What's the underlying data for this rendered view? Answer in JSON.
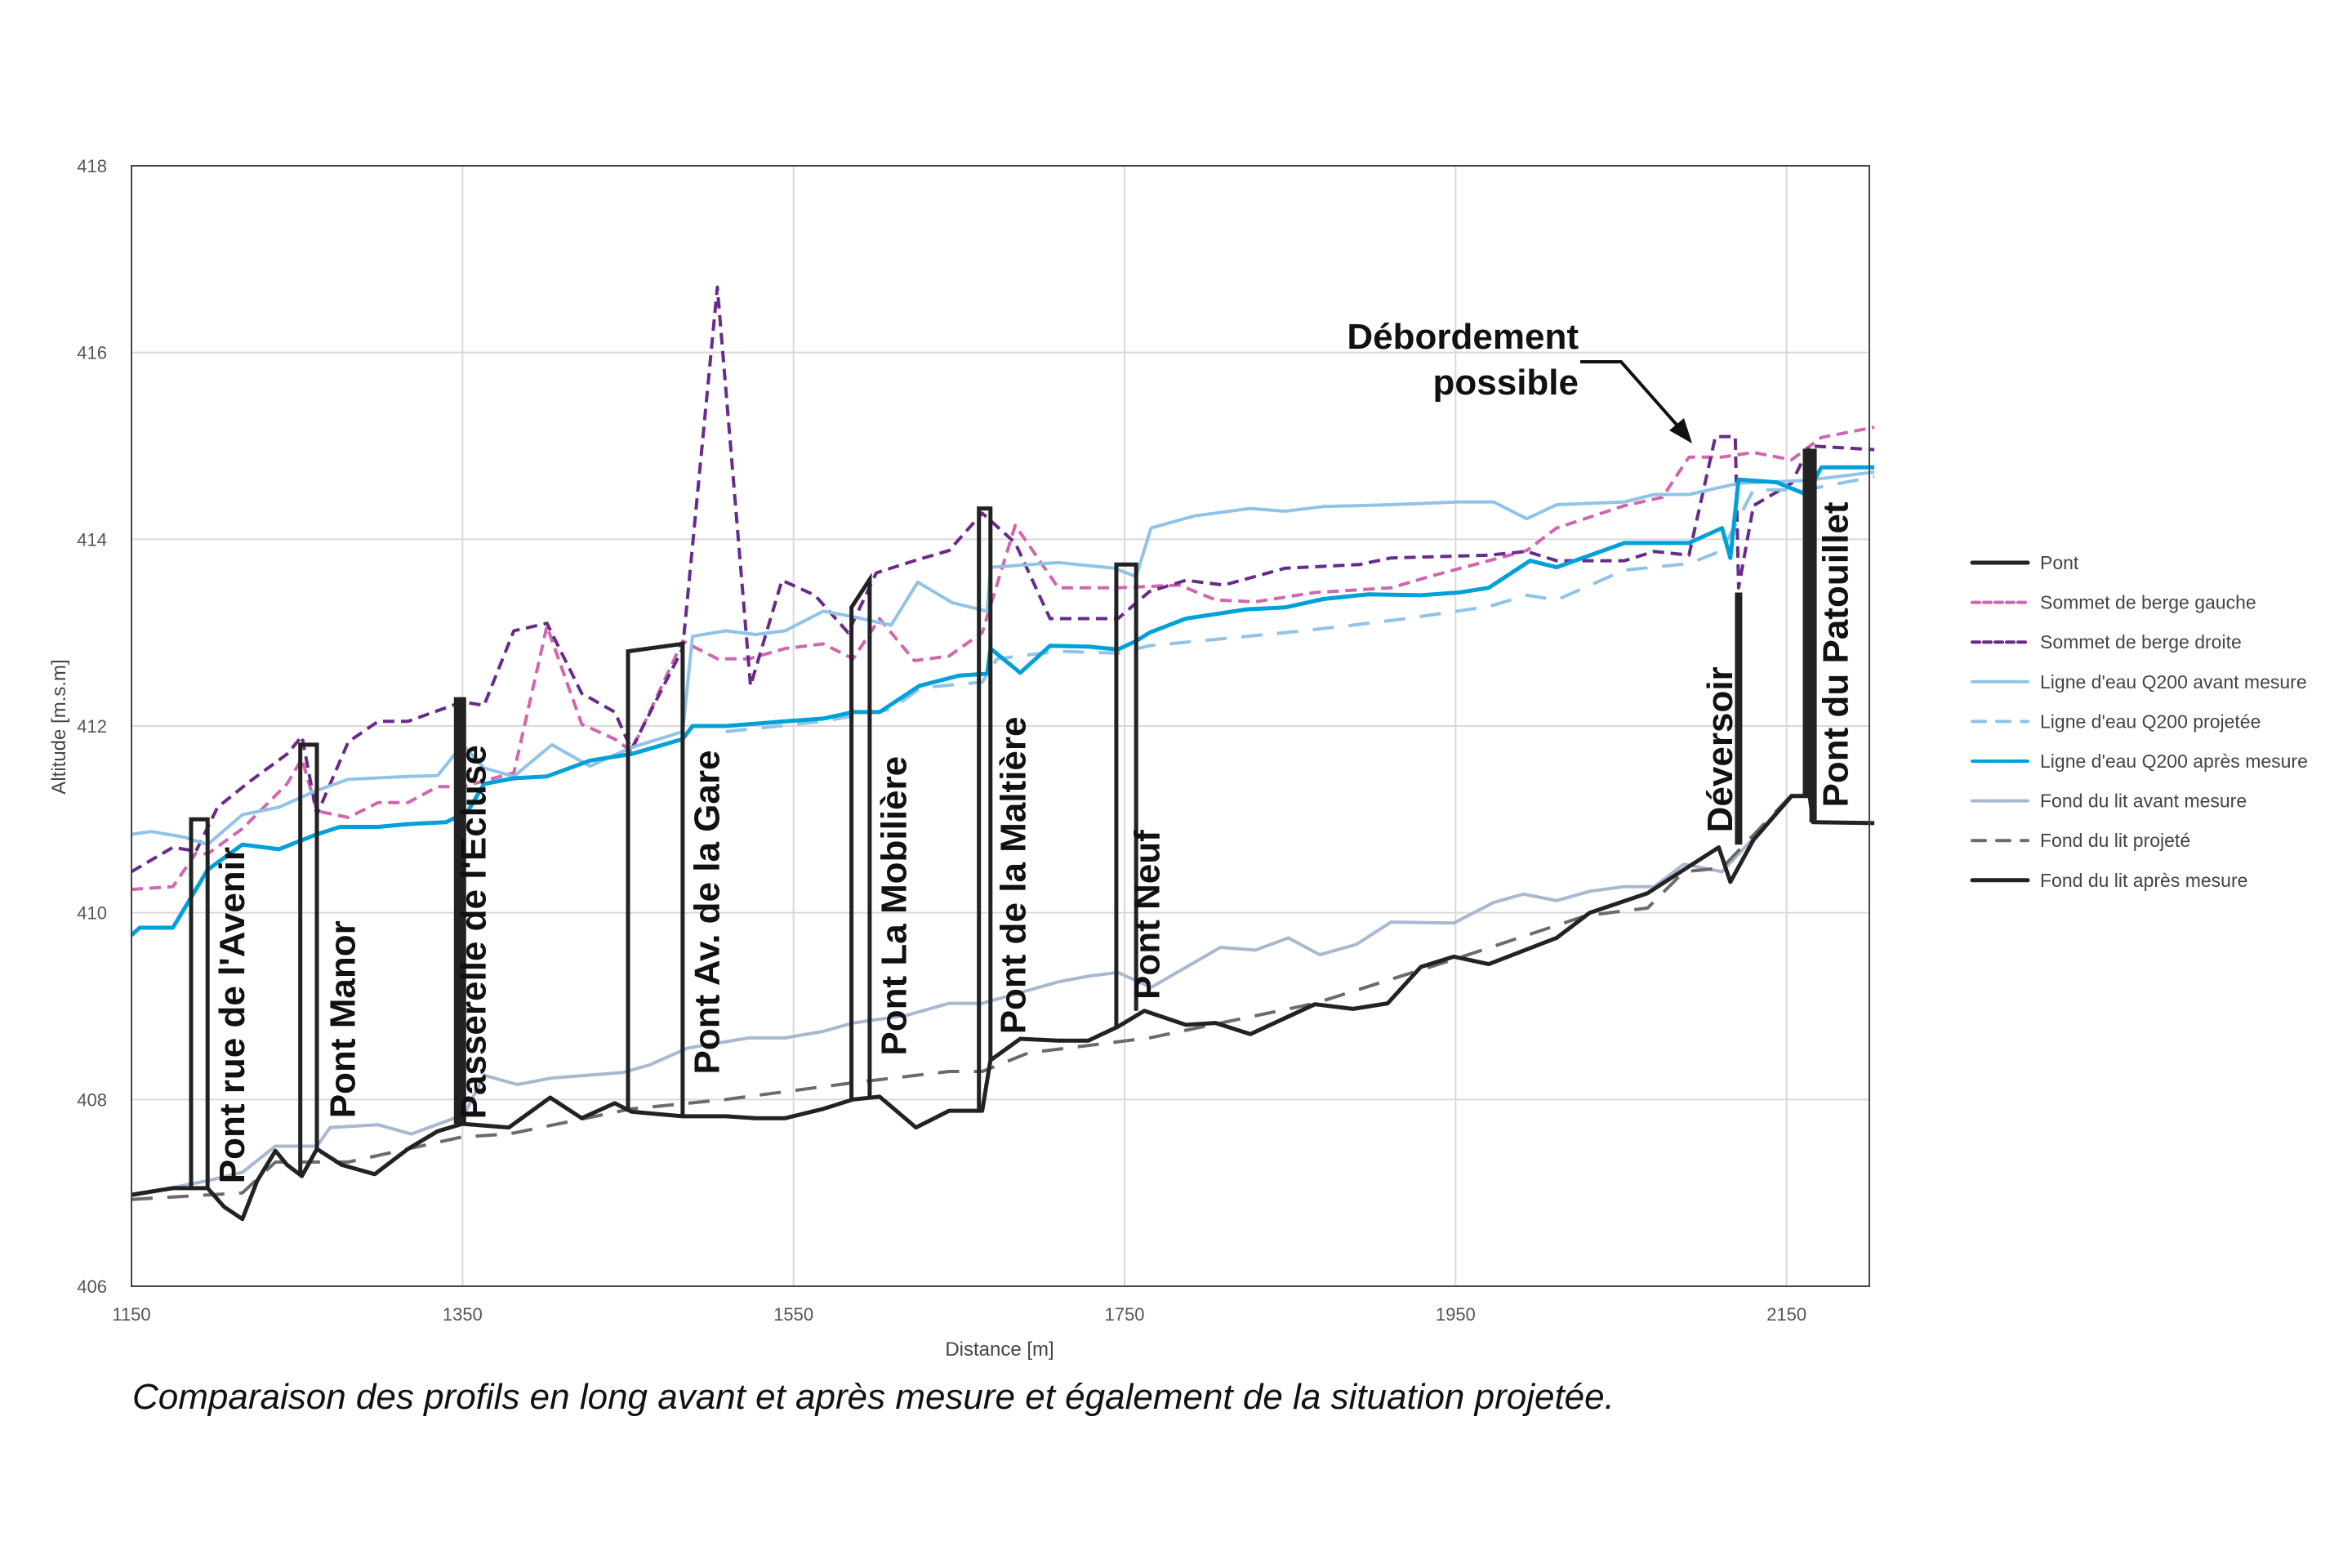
{
  "chart_data": {
    "type": "line",
    "xlabel": "Distance [m]",
    "ylabel": "Altitude [m.s.m]",
    "xlim": [
      1150,
      2200
    ],
    "ylim": [
      406,
      418
    ],
    "xticks": [
      1150,
      1350,
      1550,
      1750,
      1950,
      2150
    ],
    "yticks": [
      406,
      408,
      410,
      412,
      414,
      416,
      418
    ],
    "grid": true,
    "legend_position": "right",
    "caption": "Comparaison des profils en long avant et après mesure et également de la situation projetée.",
    "annotation": {
      "line1": "Débordement",
      "line2": "possible"
    },
    "legend": [
      {
        "label": "Pont",
        "color": "#222222",
        "dash": "solid"
      },
      {
        "label": "Sommet de berge gauche",
        "color": "#d166b0",
        "dash": "dashed"
      },
      {
        "label": "Sommet de berge droite",
        "color": "#6a2a8a",
        "dash": "dashed"
      },
      {
        "label": "Ligne d'eau Q200 avant mesure",
        "color": "#8fc3e8",
        "dash": "solid"
      },
      {
        "label": "Ligne d'eau Q200 projetée",
        "color": "#8fc3e8",
        "dash": "long-dashed"
      },
      {
        "label": "Ligne d'eau Q200 après mesure",
        "color": "#00a0d8",
        "dash": "solid"
      },
      {
        "label": "Fond du lit avant mesure",
        "color": "#a8b8d0",
        "dash": "solid"
      },
      {
        "label": "Fond du lit projeté",
        "color": "#6b6b6b",
        "dash": "long-dashed"
      },
      {
        "label": "Fond du lit après mesure",
        "color": "#222222",
        "dash": "solid"
      }
    ],
    "bridges": [
      {
        "name": "Pont rue de l'Avenir",
        "x_left": 1186,
        "x_right": 1196,
        "top": 411.0,
        "bottom_left": 407.05,
        "bottom_right": 407.05
      },
      {
        "name": "Pont Manor",
        "x_left": 1252,
        "x_right": 1262,
        "top": 411.8,
        "bottom_left": 407.18,
        "bottom_right": 407.47
      },
      {
        "name": "Passerelle de l'Ecluse",
        "x_left": 1347,
        "x_right": 1350,
        "top": 412.27,
        "bottom_left": 407.74,
        "bottom_right": 407.74
      },
      {
        "name": "Pont Av. de la Gare",
        "x_left": 1450,
        "x_right": 1483,
        "top_left": 412.8,
        "top": 412.88,
        "bottom_left": 407.87,
        "bottom_right": 407.82
      },
      {
        "name": "Pont La Mobilière",
        "x_left": 1585,
        "x_right": 1596,
        "top_left": 413.27,
        "top": 413.57,
        "bottom_left": 408.0,
        "bottom_right": 408.03
      },
      {
        "name": "Pont de la Maltière",
        "x_left": 1662,
        "x_right": 1669,
        "top": 414.33,
        "bottom_left": 407.88,
        "bottom_right": 408.42
      },
      {
        "name": "Pont Neuf",
        "x_left": 1745,
        "x_right": 1757,
        "top": 413.73,
        "bottom_left": 408.78,
        "bottom_right": 408.95
      },
      {
        "name": "Déversoir",
        "x_left": 2121,
        "x_right": 2121,
        "top": 413.43,
        "bottom_left": 410.73,
        "bottom_right": 410.73
      },
      {
        "name": "Pont du Patouillet",
        "x_left": 2162,
        "x_right": 2166,
        "top": 414.93,
        "bottom_left": 411.25,
        "bottom_right": 410.97
      }
    ],
    "series": [
      {
        "name": "Sommet de berge gauche",
        "x": [
          1150,
          1175,
          1189,
          1196,
          1217,
          1244,
          1253,
          1262,
          1281,
          1299,
          1317,
          1335,
          1350,
          1381,
          1401,
          1422,
          1442,
          1452,
          1483,
          1504,
          1523,
          1545,
          1568,
          1586,
          1602,
          1623,
          1644,
          1664,
          1684,
          1710,
          1746,
          1783,
          1805,
          1829,
          1865,
          1911,
          1934,
          1970,
          1993,
          2011,
          2052,
          2075,
          2091,
          2111,
          2130,
          2153,
          2171,
          2203
        ],
        "y": [
          410.25,
          410.28,
          410.64,
          410.63,
          410.9,
          411.38,
          411.65,
          411.09,
          411.02,
          411.18,
          411.18,
          411.35,
          411.35,
          411.5,
          413.07,
          412.02,
          411.86,
          411.73,
          412.91,
          412.72,
          412.72,
          412.83,
          412.88,
          412.72,
          413.15,
          412.7,
          412.75,
          413.0,
          414.15,
          413.48,
          413.48,
          413.51,
          413.35,
          413.33,
          413.43,
          413.48,
          413.6,
          413.77,
          413.88,
          414.12,
          414.36,
          414.45,
          414.88,
          414.88,
          414.93,
          414.85,
          415.09,
          415.2
        ]
      },
      {
        "name": "Sommet de berge droite",
        "x": [
          1150,
          1175,
          1189,
          1202,
          1221,
          1244,
          1253,
          1262,
          1281,
          1299,
          1317,
          1350,
          1363,
          1381,
          1401,
          1422,
          1442,
          1452,
          1483,
          1504,
          1524,
          1543,
          1563,
          1583,
          1600,
          1623,
          1644,
          1664,
          1684,
          1705,
          1746,
          1765,
          1787,
          1810,
          1847,
          1892,
          1911,
          1970,
          1993,
          2011,
          2052,
          2070,
          2091,
          2107,
          2119,
          2121,
          2130,
          2153,
          2164,
          2203
        ],
        "y": [
          410.44,
          410.7,
          410.66,
          411.13,
          411.4,
          411.7,
          411.89,
          411.05,
          411.83,
          412.05,
          412.05,
          412.26,
          412.22,
          413.02,
          413.1,
          412.35,
          412.15,
          411.75,
          412.83,
          416.7,
          412.43,
          413.56,
          413.4,
          413.0,
          413.64,
          413.77,
          413.88,
          414.28,
          413.96,
          413.15,
          413.15,
          413.44,
          413.56,
          413.51,
          413.69,
          413.73,
          413.8,
          413.83,
          413.87,
          413.77,
          413.77,
          413.87,
          413.83,
          415.1,
          415.1,
          413.48,
          414.36,
          414.6,
          415.0,
          414.96
        ]
      },
      {
        "name": "Ligne d'eau Q200 avant mesure",
        "x": [
          1150,
          1162,
          1182,
          1196,
          1217,
          1239,
          1262,
          1281,
          1317,
          1335,
          1350,
          1363,
          1381,
          1404,
          1427,
          1452,
          1483,
          1489,
          1509,
          1527,
          1545,
          1568,
          1586,
          1609,
          1625,
          1646,
          1667,
          1669,
          1710,
          1744,
          1757,
          1766,
          1792,
          1826,
          1847,
          1870,
          1911,
          1952,
          1973,
          1993,
          2011,
          2052,
          2070,
          2091,
          2121,
          2162,
          2203
        ],
        "y": [
          410.84,
          410.87,
          410.81,
          410.73,
          411.05,
          411.13,
          411.31,
          411.43,
          411.46,
          411.47,
          411.8,
          411.55,
          411.46,
          411.8,
          411.57,
          411.77,
          411.94,
          412.96,
          413.02,
          412.98,
          413.02,
          413.23,
          413.17,
          413.08,
          413.54,
          413.32,
          413.23,
          413.7,
          413.75,
          413.69,
          413.6,
          414.12,
          414.25,
          414.33,
          414.3,
          414.35,
          414.37,
          414.4,
          414.4,
          414.22,
          414.37,
          414.4,
          414.48,
          414.48,
          414.6,
          414.63,
          414.72
        ]
      },
      {
        "name": "Ligne d'eau Q200 projetée",
        "x": [
          1509,
          1568,
          1609,
          1627,
          1664,
          1673,
          1710,
          1746,
          1765,
          1847,
          1883,
          1920,
          1970,
          1993,
          2011,
          2052,
          2091,
          2111,
          2130,
          2162,
          2203
        ],
        "y": [
          411.94,
          412.05,
          412.18,
          412.41,
          412.47,
          412.72,
          412.8,
          412.78,
          412.86,
          413.0,
          413.07,
          413.15,
          413.28,
          413.4,
          413.35,
          413.67,
          413.74,
          413.88,
          414.53,
          414.53,
          414.67
        ]
      },
      {
        "name": "Ligne d'eau Q200 après mesure",
        "x": [
          1150,
          1155,
          1175,
          1196,
          1217,
          1239,
          1262,
          1276,
          1299,
          1317,
          1340,
          1353,
          1363,
          1381,
          1401,
          1427,
          1452,
          1483,
          1489,
          1509,
          1545,
          1568,
          1586,
          1602,
          1626,
          1650,
          1667,
          1669,
          1687,
          1705,
          1728,
          1746,
          1757,
          1765,
          1787,
          1824,
          1847,
          1870,
          1897,
          1929,
          1952,
          1970,
          1995,
          2011,
          2052,
          2091,
          2111,
          2116,
          2121,
          2144,
          2162,
          2171,
          2203
        ],
        "y": [
          409.76,
          409.84,
          409.84,
          410.46,
          410.73,
          410.68,
          410.84,
          410.92,
          410.92,
          410.95,
          410.97,
          411.08,
          411.38,
          411.44,
          411.46,
          411.63,
          411.7,
          411.86,
          412.0,
          412.0,
          412.05,
          412.08,
          412.15,
          412.15,
          412.43,
          412.54,
          412.56,
          412.83,
          412.57,
          412.86,
          412.85,
          412.82,
          412.91,
          413.0,
          413.15,
          413.25,
          413.27,
          413.36,
          413.41,
          413.4,
          413.43,
          413.48,
          413.77,
          413.7,
          413.96,
          413.96,
          414.12,
          413.8,
          414.64,
          414.61,
          414.48,
          414.77,
          414.77
        ]
      },
      {
        "name": "Fond du lit avant mesure",
        "x": [
          1150,
          1196,
          1217,
          1237,
          1262,
          1270,
          1299,
          1319,
          1345,
          1350,
          1363,
          1383,
          1404,
          1447,
          1463,
          1486,
          1523,
          1545,
          1568,
          1586,
          1618,
          1644,
          1664,
          1710,
          1728,
          1746,
          1766,
          1808,
          1829,
          1849,
          1868,
          1890,
          1911,
          1949,
          1973,
          1991,
          2011,
          2031,
          2052,
          2070,
          2088,
          2111,
          2130,
          2153,
          2164
        ],
        "y": [
          406.97,
          407.13,
          407.22,
          407.5,
          407.5,
          407.7,
          407.73,
          407.63,
          407.8,
          407.8,
          408.26,
          408.16,
          408.23,
          408.29,
          408.37,
          408.55,
          408.66,
          408.66,
          408.73,
          408.82,
          408.9,
          409.03,
          409.03,
          409.26,
          409.32,
          409.36,
          409.2,
          409.63,
          409.6,
          409.73,
          409.55,
          409.66,
          409.9,
          409.89,
          410.11,
          410.2,
          410.13,
          410.23,
          410.28,
          410.28,
          410.52,
          410.44,
          410.8,
          411.26,
          411.26
        ]
      },
      {
        "name": "Fond du lit projeté",
        "x": [
          1150,
          1217,
          1237,
          1281,
          1350,
          1378,
          1452,
          1509,
          1586,
          1644,
          1664,
          1692,
          1765,
          1865,
          1949,
          2029,
          2066,
          2088,
          2111,
          2153,
          2164
        ],
        "y": [
          406.93,
          407.0,
          407.33,
          407.33,
          407.6,
          407.63,
          407.9,
          408.0,
          408.18,
          408.3,
          408.3,
          408.5,
          408.66,
          409.03,
          409.5,
          409.97,
          410.05,
          410.44,
          410.48,
          411.26,
          411.26
        ]
      },
      {
        "name": "Fond du lit après mesure",
        "x": [
          1150,
          1175,
          1196,
          1206,
          1217,
          1226,
          1237,
          1244,
          1253,
          1262,
          1277,
          1297,
          1317,
          1335,
          1350,
          1378,
          1403,
          1422,
          1442,
          1452,
          1483,
          1509,
          1527,
          1545,
          1568,
          1586,
          1602,
          1624,
          1644,
          1664,
          1669,
          1687,
          1710,
          1728,
          1746,
          1762,
          1787,
          1805,
          1826,
          1865,
          1888,
          1909,
          1929,
          1949,
          1970,
          2011,
          2031,
          2066,
          2087,
          2109,
          2116,
          2130,
          2153,
          2164,
          2166,
          2203
        ],
        "y": [
          406.98,
          407.05,
          407.05,
          406.85,
          406.72,
          407.13,
          407.45,
          407.3,
          407.18,
          407.47,
          407.3,
          407.2,
          407.47,
          407.66,
          407.74,
          407.7,
          408.02,
          407.8,
          407.96,
          407.87,
          407.82,
          407.82,
          407.8,
          407.8,
          407.9,
          408.0,
          408.03,
          407.7,
          407.88,
          407.88,
          408.42,
          408.65,
          408.63,
          408.63,
          408.78,
          408.95,
          408.8,
          408.82,
          408.7,
          409.02,
          408.97,
          409.03,
          409.42,
          409.53,
          409.45,
          409.73,
          410.0,
          410.21,
          410.45,
          410.7,
          410.33,
          410.78,
          411.25,
          411.25,
          410.97,
          410.96
        ]
      }
    ]
  }
}
